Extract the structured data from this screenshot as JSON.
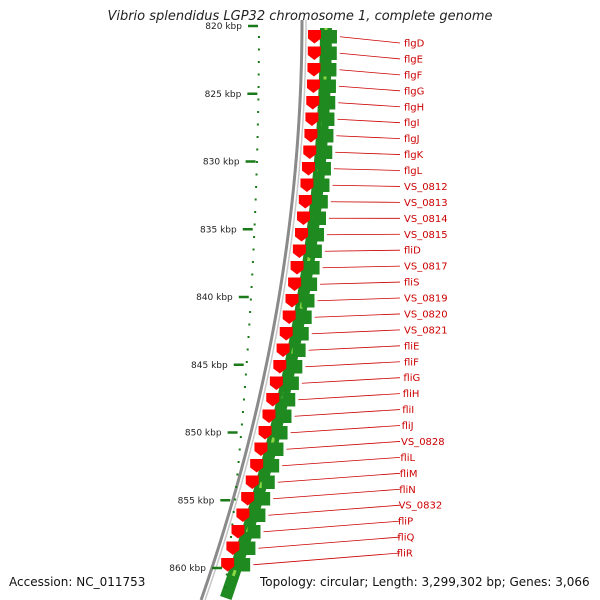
{
  "title": "Vibrio splendidus LGP32 chromosome 1, complete genome",
  "accession": "Accession: NC_011753",
  "topology": "Topology: circular; Length: 3,299,302 bp; Genes: 3,066",
  "colors": {
    "feature_red": "#ff0000",
    "track_green": "#1f8a1f",
    "track_light_green": "#9ee34a",
    "label_red": "#cc0000",
    "tick_green": "#1a7a1a",
    "backbone_gray": "#8a8a8a"
  },
  "scale_labels": [
    {
      "kbp": 820,
      "text": "820 kbp"
    },
    {
      "kbp": 825,
      "text": "825 kbp"
    },
    {
      "kbp": 830,
      "text": "830 kbp"
    },
    {
      "kbp": 835,
      "text": "835 kbp"
    },
    {
      "kbp": 840,
      "text": "840 kbp"
    },
    {
      "kbp": 845,
      "text": "845 kbp"
    },
    {
      "kbp": 850,
      "text": "850 kbp"
    },
    {
      "kbp": 855,
      "text": "855 kbp"
    },
    {
      "kbp": 860,
      "text": "860 kbp"
    }
  ],
  "genes": [
    {
      "name": "flgD"
    },
    {
      "name": "flgE"
    },
    {
      "name": "flgF"
    },
    {
      "name": "flgG"
    },
    {
      "name": "flgH"
    },
    {
      "name": "flgI"
    },
    {
      "name": "flgJ"
    },
    {
      "name": "flgK"
    },
    {
      "name": "flgL"
    },
    {
      "name": "VS_0812"
    },
    {
      "name": "VS_0813"
    },
    {
      "name": "VS_0814"
    },
    {
      "name": "VS_0815"
    },
    {
      "name": "fliD"
    },
    {
      "name": "VS_0817"
    },
    {
      "name": "fliS"
    },
    {
      "name": "VS_0819"
    },
    {
      "name": "VS_0820"
    },
    {
      "name": "VS_0821"
    },
    {
      "name": "fliE"
    },
    {
      "name": "fliF"
    },
    {
      "name": "fliG"
    },
    {
      "name": "fliH"
    },
    {
      "name": "fliI"
    },
    {
      "name": "fliJ"
    },
    {
      "name": "VS_0828"
    },
    {
      "name": "fliL"
    },
    {
      "name": "fliM"
    },
    {
      "name": "fliN"
    },
    {
      "name": "VS_0832"
    },
    {
      "name": "fliP"
    },
    {
      "name": "fliQ"
    },
    {
      "name": "fliR"
    }
  ]
}
